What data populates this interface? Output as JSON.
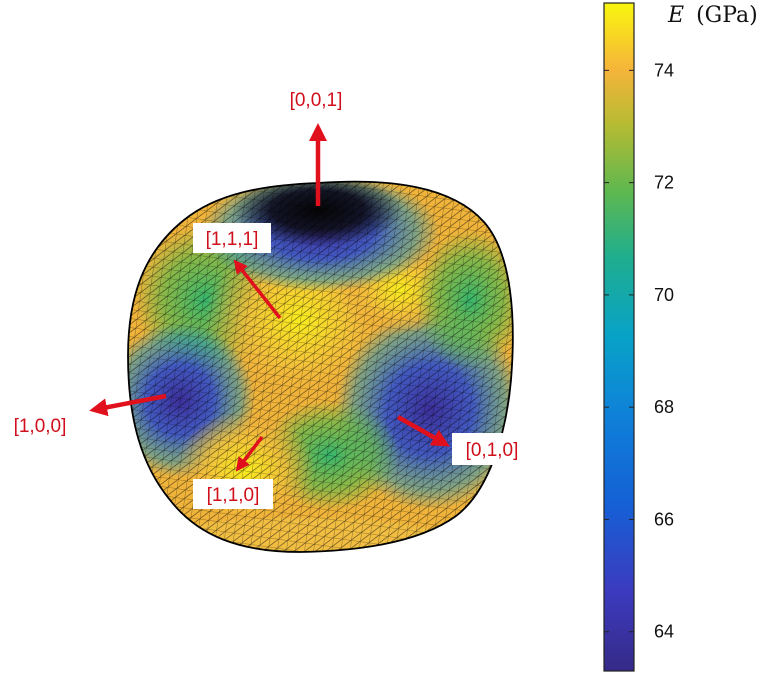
{
  "surface": {
    "colormap": "parula",
    "edge_color": "#000000"
  },
  "directions": [
    {
      "key": "z",
      "label": "[0,0,1]"
    },
    {
      "key": "diag111",
      "label": "[1,1,1]"
    },
    {
      "key": "x",
      "label": "[1,0,0]"
    },
    {
      "key": "diag110",
      "label": "[1,1,0]"
    },
    {
      "key": "y",
      "label": "[0,1,0]"
    }
  ],
  "arrow_color": "#e0101c",
  "colorbar": {
    "title_symbol": "E",
    "title_unit": "(GPa)",
    "min": 63.3,
    "max": 75.2,
    "ticks": [
      "64",
      "66",
      "68",
      "70",
      "72",
      "74"
    ]
  }
}
